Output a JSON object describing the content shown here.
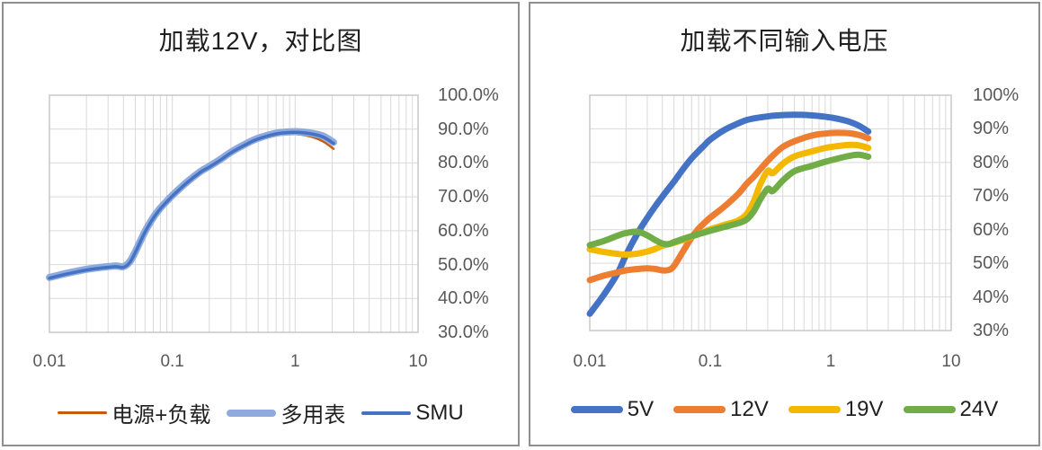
{
  "chart_data": [
    {
      "type": "line",
      "title": "加载12V，对比图",
      "xlabel": "",
      "ylabel": "",
      "x_axis": {
        "scale": "log",
        "min": 0.01,
        "max": 10,
        "tick_labels": [
          "0.01",
          "0.1",
          "1",
          "10"
        ]
      },
      "y_axis": {
        "min": 30,
        "max": 100,
        "step": 10,
        "unit": "%",
        "tick_labels": [
          "100.0%",
          "90.0%",
          "80.0%",
          "70.0%",
          "60.0%",
          "50.0%",
          "40.0%",
          "30.0%"
        ]
      },
      "grid": true,
      "legend_position": "bottom",
      "x": [
        0.01,
        0.013,
        0.017,
        0.02,
        0.025,
        0.03,
        0.035,
        0.04,
        0.045,
        0.05,
        0.06,
        0.07,
        0.08,
        0.09,
        0.1,
        0.13,
        0.17,
        0.2,
        0.25,
        0.3,
        0.4,
        0.5,
        0.7,
        0.9,
        1.1,
        1.4,
        1.7,
        2.05
      ],
      "series": [
        {
          "name": "电源+负载",
          "color": "#C55A11",
          "line_width": 2.5,
          "swatch_height": 3,
          "values": [
            45.8,
            46.8,
            47.7,
            48.2,
            48.7,
            49.0,
            49.2,
            49.0,
            50.4,
            53.4,
            59.4,
            63.5,
            66.3,
            68.3,
            70.0,
            73.8,
            77.1,
            78.6,
            80.8,
            82.8,
            85.2,
            86.8,
            88.2,
            88.6,
            88.4,
            87.6,
            86.3,
            84.2
          ]
        },
        {
          "name": "多用表",
          "color": "#8FAADC",
          "line_width": 8,
          "swatch_height": 8,
          "values": [
            46.2,
            47.2,
            48.1,
            48.6,
            49.1,
            49.4,
            49.6,
            49.4,
            50.8,
            53.8,
            59.8,
            63.9,
            66.7,
            68.7,
            70.4,
            74.2,
            77.5,
            79.0,
            81.2,
            83.2,
            85.7,
            87.3,
            88.8,
            89.2,
            89.2,
            88.7,
            87.9,
            86.1
          ]
        },
        {
          "name": "SMU",
          "color": "#4472C4",
          "line_width": 3.5,
          "swatch_height": 4,
          "values": [
            46.0,
            47.0,
            47.9,
            48.4,
            48.9,
            49.2,
            49.4,
            49.2,
            50.6,
            53.6,
            59.6,
            63.7,
            66.5,
            68.5,
            70.2,
            74.0,
            77.3,
            78.8,
            81.0,
            83.0,
            85.5,
            87.1,
            88.6,
            89.0,
            89.0,
            88.5,
            87.6,
            85.8
          ]
        }
      ]
    },
    {
      "type": "line",
      "title": "加载不同输入电压",
      "xlabel": "",
      "ylabel": "",
      "x_axis": {
        "scale": "log",
        "min": 0.01,
        "max": 10,
        "tick_labels": [
          "0.01",
          "0.1",
          "1",
          "10"
        ]
      },
      "y_axis": {
        "min": 30,
        "max": 100,
        "step": 10,
        "unit": "%",
        "tick_labels": [
          "100%",
          "90%",
          "80%",
          "70%",
          "60%",
          "50%",
          "40%",
          "30%"
        ]
      },
      "grid": true,
      "legend_position": "bottom",
      "x": [
        0.01,
        0.013,
        0.017,
        0.02,
        0.025,
        0.03,
        0.035,
        0.04,
        0.045,
        0.05,
        0.06,
        0.07,
        0.08,
        0.09,
        0.1,
        0.13,
        0.17,
        0.2,
        0.23,
        0.26,
        0.3,
        0.33,
        0.4,
        0.5,
        0.7,
        0.9,
        1.1,
        1.4,
        1.7,
        2.05
      ],
      "series": [
        {
          "name": "5V",
          "color": "#4472C4",
          "line_width": 7,
          "swatch_height": 8,
          "values": [
            35.0,
            40.5,
            47.0,
            52.5,
            59.0,
            63.5,
            67.0,
            69.8,
            72.2,
            74.3,
            78.2,
            81.2,
            83.4,
            85.2,
            86.8,
            89.6,
            91.6,
            92.6,
            93.1,
            93.4,
            93.7,
            93.9,
            94.1,
            94.2,
            94.0,
            93.6,
            93.1,
            92.2,
            91.0,
            89.2
          ]
        },
        {
          "name": "12V",
          "color": "#ED7D31",
          "line_width": 7,
          "swatch_height": 8,
          "values": [
            45.0,
            46.3,
            47.3,
            47.9,
            48.3,
            48.5,
            48.3,
            47.9,
            48.0,
            49.2,
            53.8,
            57.6,
            60.3,
            62.1,
            63.6,
            66.8,
            70.6,
            73.6,
            75.8,
            78.0,
            80.5,
            82.0,
            84.6,
            86.3,
            88.0,
            88.6,
            88.8,
            88.7,
            88.2,
            87.2
          ]
        },
        {
          "name": "19V",
          "color": "#F3B800",
          "line_width": 7,
          "swatch_height": 8,
          "values": [
            54.2,
            53.4,
            52.8,
            52.6,
            52.9,
            53.5,
            54.3,
            55.2,
            55.7,
            56.1,
            57.0,
            57.9,
            58.7,
            59.4,
            60.1,
            61.4,
            62.7,
            64.6,
            68.5,
            73.5,
            77.5,
            76.8,
            79.6,
            81.8,
            83.3,
            84.3,
            84.8,
            85.2,
            85.1,
            84.3
          ]
        },
        {
          "name": "24V",
          "color": "#70AD47",
          "line_width": 7,
          "swatch_height": 8,
          "values": [
            55.4,
            56.6,
            58.2,
            59.0,
            59.4,
            58.3,
            56.9,
            55.9,
            55.7,
            56.3,
            57.3,
            58.1,
            58.7,
            59.2,
            59.7,
            60.8,
            61.9,
            63.0,
            65.5,
            69.0,
            72.2,
            71.5,
            74.6,
            77.4,
            79.0,
            80.2,
            81.0,
            81.9,
            82.3,
            81.7
          ]
        }
      ]
    }
  ],
  "style": {
    "grid_color": "#D9D9D9",
    "plot_border_color": "#BFBFBF",
    "tick_color": "#595959",
    "title_color": "#1f1f1f"
  }
}
